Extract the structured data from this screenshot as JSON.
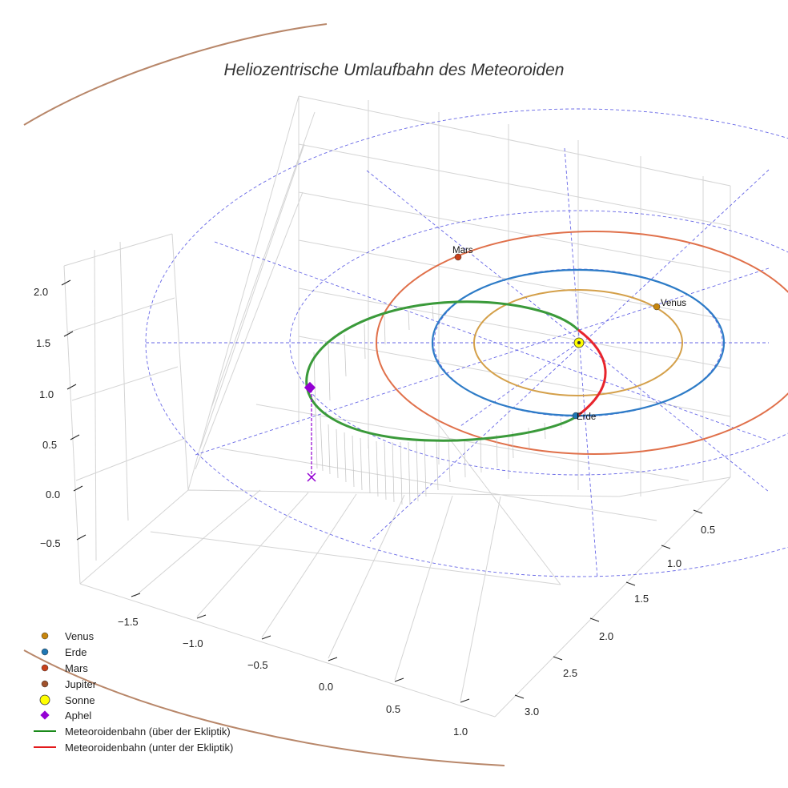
{
  "chart_data": {
    "type": "line3d",
    "title": "Heliozentrische Umlaufbahn des Meteoroiden",
    "axes": {
      "x": {
        "ticks": [
          "−1.5",
          "−1.0",
          "−0.5",
          "0.0",
          "0.5",
          "1.0"
        ]
      },
      "y": {
        "ticks": [
          "0.5",
          "1.0",
          "1.5",
          "2.0",
          "2.5",
          "3.0"
        ]
      },
      "z": {
        "ticks": [
          "2.0",
          "1.5",
          "1.0",
          "0.5",
          "0.0",
          "−0.5"
        ]
      }
    },
    "planets": [
      {
        "name": "Venus",
        "label": "Venus",
        "color": "#c8860d",
        "orbit_color": "#d4a04a"
      },
      {
        "name": "Erde",
        "label": "Erde",
        "color": "#1f77b4",
        "orbit_color": "#2e7cc7"
      },
      {
        "name": "Mars",
        "label": "Mars",
        "color": "#c8401a",
        "orbit_color": "#e0704a"
      },
      {
        "name": "Jupiter",
        "label": "",
        "color": "#a0522d",
        "orbit_color": "#b8876a"
      }
    ],
    "sun": {
      "name": "Sonne",
      "color": "#ffff00"
    },
    "aphel": {
      "name": "Aphel",
      "color": "#9400d3"
    },
    "meteoroid_orbit": {
      "above_label": "Meteoroidenbahn (über der Ekliptik)",
      "below_label": "Meteoroidenbahn (unter der Ekliptik)",
      "above_color": "#2ca02c",
      "below_color": "#e31a1c"
    },
    "legend": [
      {
        "label": "Venus",
        "marker": "circle",
        "color": "#c8860d"
      },
      {
        "label": "Erde",
        "marker": "circle",
        "color": "#1f77b4"
      },
      {
        "label": "Mars",
        "marker": "circle",
        "color": "#c8401a"
      },
      {
        "label": "Jupiter",
        "marker": "circle",
        "color": "#a0522d"
      },
      {
        "label": "Sonne",
        "marker": "big-circle",
        "color": "#ffff00"
      },
      {
        "label": "Aphel",
        "marker": "diamond",
        "color": "#9400d3"
      },
      {
        "label": "Meteoroidenbahn (über der Ekliptik)",
        "marker": "line",
        "color": "#1a8a1a"
      },
      {
        "label": "Meteoroidenbahn (unter der Ekliptik)",
        "marker": "line",
        "color": "#e31a1c"
      }
    ],
    "legend_position": "lower-left",
    "grid": true
  }
}
